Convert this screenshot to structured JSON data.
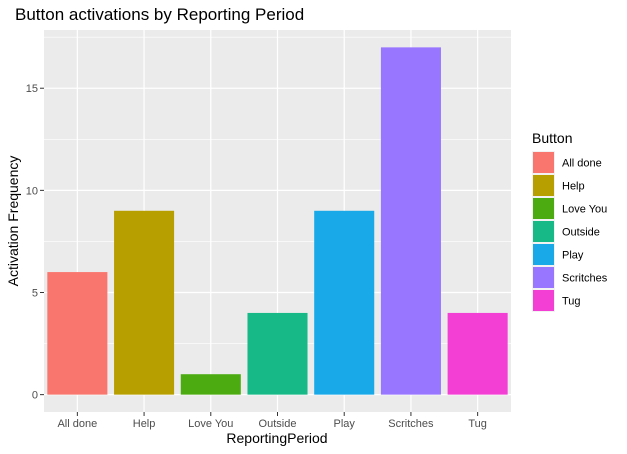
{
  "chart_data": {
    "type": "bar",
    "title": "Button activations by Reporting Period",
    "xlabel": "ReportingPeriod",
    "ylabel": "Activation Frequency",
    "categories": [
      "All done",
      "Help",
      "Love You",
      "Outside",
      "Play",
      "Scritches",
      "Tug"
    ],
    "values": [
      6,
      9,
      1,
      4,
      9,
      17,
      4
    ],
    "colors": [
      "#F8766D",
      "#B79F00",
      "#4CAB10",
      "#17BA86",
      "#19A9E8",
      "#9876FF",
      "#F43FD4"
    ],
    "ylim": [
      -0.85,
      17.85
    ],
    "yticks": [
      0,
      5,
      10,
      15
    ],
    "grid": true,
    "legend": {
      "title": "Button",
      "position": "right",
      "entries": [
        "All done",
        "Help",
        "Love You",
        "Outside",
        "Play",
        "Scritches",
        "Tug"
      ]
    },
    "panel_background": "#EBEBEB",
    "grid_color": "#FFFFFF"
  }
}
